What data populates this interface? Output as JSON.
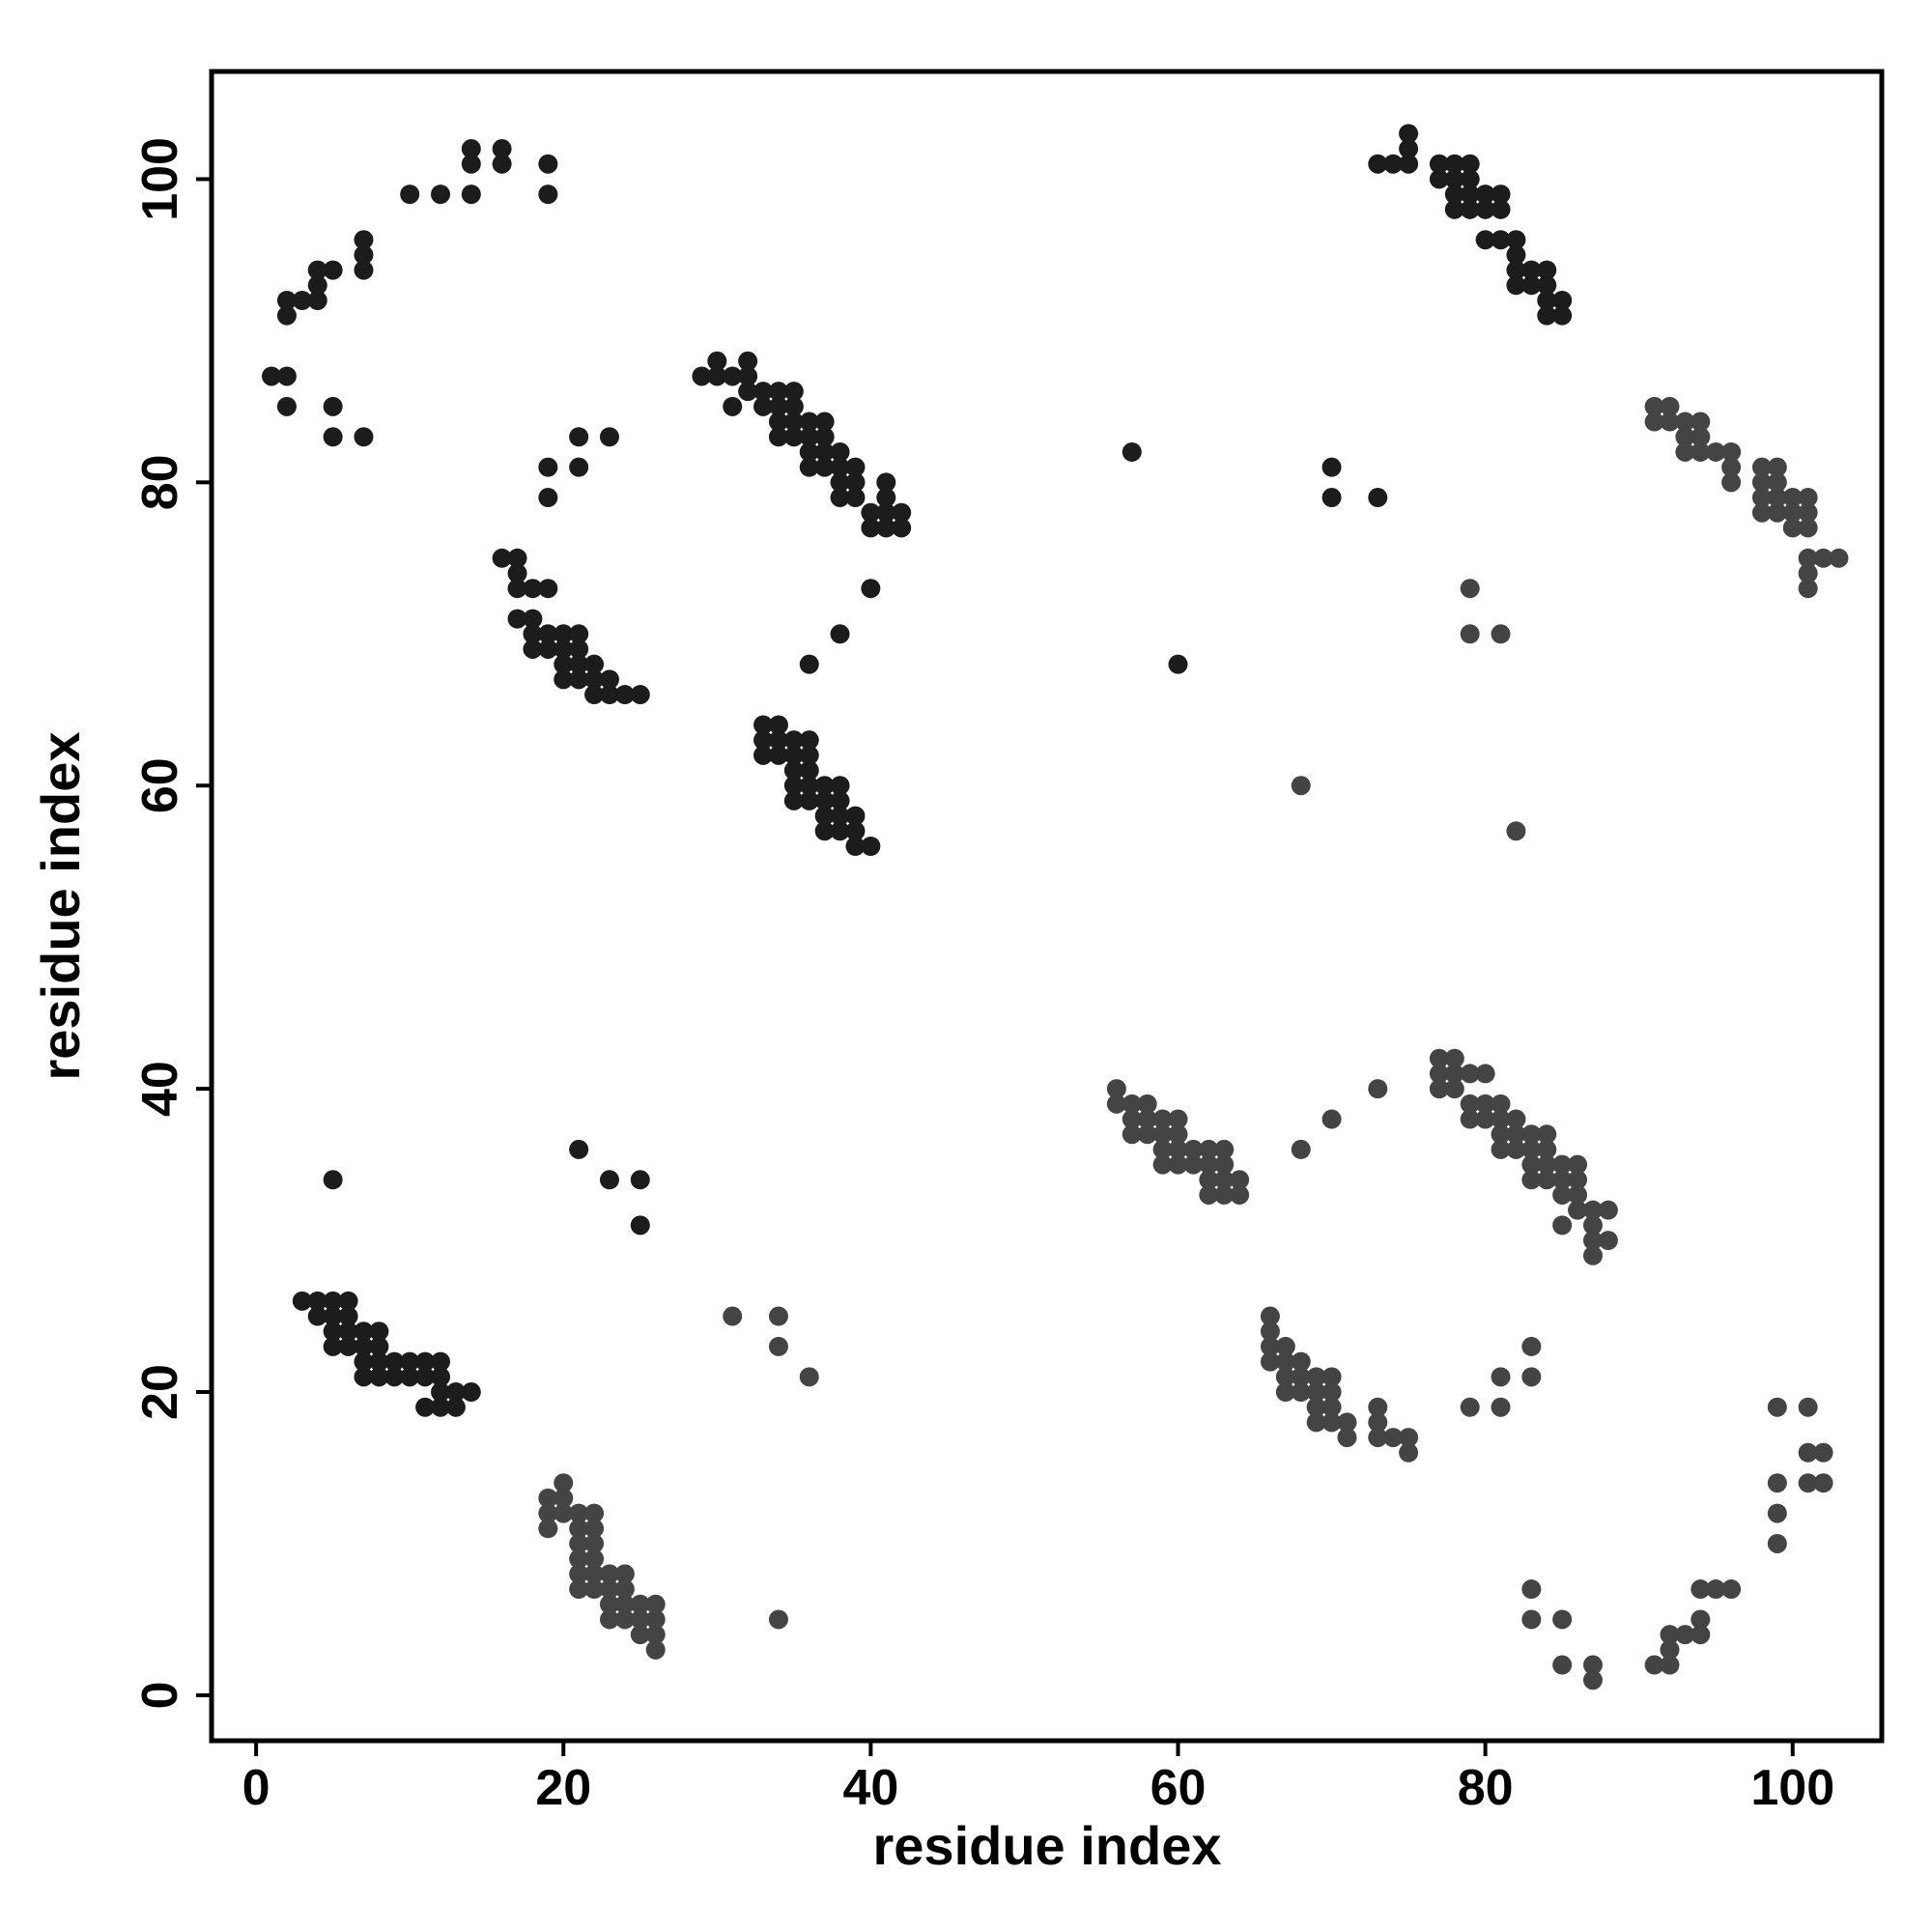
{
  "chart_data": {
    "type": "scatter",
    "xlabel": "residue index",
    "ylabel": "residue index",
    "xlim": [
      -2.9,
      105.8
    ],
    "ylim": [
      -3,
      107.1
    ],
    "xticks": [
      0,
      20,
      40,
      60,
      80,
      100
    ],
    "yticks": [
      0,
      20,
      40,
      60,
      80,
      100
    ],
    "series": [
      {
        "color": "#1c1c1c",
        "x": [
          1,
          2,
          2,
          5,
          5,
          7,
          2,
          2,
          3,
          4,
          4,
          4,
          5,
          7,
          7,
          7,
          10,
          12,
          14,
          14,
          14,
          16,
          16,
          19,
          19,
          3,
          4,
          5,
          6,
          4,
          5,
          6,
          5,
          6,
          7,
          8,
          5,
          6,
          7,
          8,
          7,
          8,
          9,
          10,
          11,
          12,
          7,
          8,
          9,
          10,
          11,
          12,
          12,
          13,
          14,
          11,
          12,
          13,
          5,
          21,
          23,
          25,
          25,
          16,
          17,
          17,
          17,
          18,
          19,
          17,
          18,
          18,
          19,
          20,
          21,
          18,
          19,
          20,
          21,
          20,
          21,
          22,
          20,
          21,
          22,
          23,
          22,
          23,
          24,
          25,
          19,
          19,
          21,
          21,
          23,
          29,
          30,
          30,
          31,
          31,
          32,
          32,
          32,
          33,
          33,
          34,
          34,
          34,
          34,
          35,
          35,
          35,
          35,
          36,
          36,
          36,
          36,
          37,
          37,
          37,
          37,
          38,
          38,
          38,
          38,
          39,
          39,
          39,
          40,
          40,
          41,
          41,
          41,
          41,
          42,
          42,
          40,
          36,
          38,
          33,
          34,
          33,
          34,
          35,
          36,
          33,
          34,
          35,
          36,
          35,
          36,
          35,
          36,
          37,
          38,
          35,
          36,
          37,
          38,
          37,
          38,
          39,
          37,
          38,
          39,
          39,
          40,
          57,
          60,
          70,
          70,
          73,
          73,
          74,
          75,
          75,
          75,
          77,
          77,
          78,
          78,
          78,
          78,
          79,
          79,
          79,
          79,
          80,
          80,
          80,
          81,
          81,
          81,
          82,
          82,
          82,
          82,
          83,
          83,
          84,
          84,
          84,
          84,
          85,
          85
        ],
        "y": [
          87,
          87,
          85,
          85,
          83,
          83,
          91,
          92,
          92,
          92,
          93,
          94,
          94,
          94,
          95,
          96,
          99,
          99,
          99,
          101,
          102,
          101,
          102,
          101,
          99,
          26,
          26,
          26,
          26,
          25,
          25,
          25,
          24,
          24,
          24,
          24,
          23,
          23,
          23,
          23,
          22,
          22,
          22,
          22,
          22,
          22,
          21,
          21,
          21,
          21,
          21,
          21,
          20,
          20,
          20,
          19,
          19,
          19,
          34,
          36,
          34,
          34,
          31,
          75,
          75,
          74,
          73,
          73,
          73,
          71,
          71,
          70,
          70,
          70,
          70,
          69,
          69,
          69,
          69,
          68,
          68,
          68,
          67,
          67,
          67,
          67,
          66,
          66,
          66,
          66,
          81,
          79,
          83,
          81,
          83,
          87,
          87,
          88,
          87,
          85,
          88,
          87,
          86,
          86,
          85,
          86,
          85,
          84,
          83,
          86,
          85,
          84,
          83,
          84,
          83,
          82,
          81,
          84,
          83,
          82,
          81,
          82,
          81,
          80,
          79,
          81,
          80,
          79,
          78,
          77,
          80,
          79,
          78,
          77,
          78,
          77,
          73,
          68,
          70,
          64,
          64,
          63,
          63,
          63,
          63,
          62,
          62,
          62,
          62,
          61,
          61,
          60,
          60,
          60,
          60,
          59,
          59,
          59,
          59,
          58,
          58,
          58,
          57,
          57,
          57,
          56,
          56,
          82,
          68,
          81,
          79,
          79,
          101,
          101,
          101,
          102,
          103,
          101,
          100,
          101,
          100,
          99,
          98,
          101,
          100,
          99,
          98,
          99,
          98,
          96,
          99,
          98,
          96,
          96,
          95,
          94,
          93,
          94,
          93,
          94,
          93,
          92,
          91,
          92,
          91
        ]
      },
      {
        "color": "#444444",
        "x": [
          87,
          87,
          85,
          85,
          83,
          83,
          91,
          92,
          92,
          92,
          93,
          94,
          94,
          94,
          95,
          96,
          99,
          99,
          99,
          101,
          102,
          101,
          102,
          101,
          99,
          26,
          26,
          26,
          26,
          25,
          25,
          25,
          24,
          24,
          24,
          24,
          23,
          23,
          23,
          23,
          22,
          22,
          22,
          22,
          22,
          22,
          21,
          21,
          21,
          21,
          21,
          21,
          20,
          20,
          20,
          19,
          19,
          19,
          34,
          36,
          34,
          34,
          31,
          75,
          75,
          74,
          73,
          73,
          73,
          71,
          71,
          70,
          70,
          70,
          70,
          69,
          69,
          69,
          69,
          68,
          68,
          68,
          67,
          67,
          67,
          67,
          66,
          66,
          66,
          66,
          81,
          79,
          83,
          81,
          83,
          87,
          87,
          88,
          87,
          85,
          88,
          87,
          86,
          86,
          85,
          86,
          85,
          84,
          83,
          86,
          85,
          84,
          83,
          84,
          83,
          82,
          81,
          84,
          83,
          82,
          81,
          82,
          81,
          80,
          79,
          81,
          80,
          79,
          78,
          77,
          80,
          79,
          78,
          77,
          78,
          77,
          73,
          68,
          70,
          64,
          64,
          63,
          63,
          63,
          63,
          62,
          62,
          62,
          62,
          61,
          61,
          60,
          60,
          60,
          60,
          59,
          59,
          59,
          59,
          58,
          58,
          58,
          57,
          57,
          57,
          56,
          56,
          82,
          68,
          81,
          79,
          79,
          101,
          101,
          101,
          102,
          103,
          101,
          100,
          101,
          100,
          99,
          98,
          101,
          100,
          99,
          98,
          99,
          98,
          96,
          99,
          98,
          96,
          96,
          95,
          94,
          93,
          94,
          93,
          94,
          93,
          92,
          91,
          92,
          91
        ],
        "y": [
          1,
          2,
          2,
          5,
          5,
          7,
          2,
          2,
          3,
          4,
          4,
          4,
          5,
          7,
          7,
          7,
          10,
          12,
          14,
          14,
          14,
          16,
          16,
          19,
          19,
          3,
          4,
          5,
          6,
          4,
          5,
          6,
          5,
          6,
          7,
          8,
          5,
          6,
          7,
          8,
          7,
          8,
          9,
          10,
          11,
          12,
          7,
          8,
          9,
          10,
          11,
          12,
          12,
          13,
          14,
          11,
          12,
          13,
          5,
          21,
          23,
          25,
          25,
          16,
          17,
          17,
          17,
          18,
          19,
          17,
          18,
          18,
          19,
          20,
          21,
          18,
          19,
          20,
          21,
          20,
          21,
          22,
          20,
          21,
          22,
          23,
          22,
          23,
          24,
          25,
          19,
          19,
          21,
          21,
          23,
          29,
          30,
          30,
          31,
          31,
          32,
          32,
          32,
          33,
          33,
          34,
          34,
          34,
          34,
          35,
          35,
          35,
          35,
          36,
          36,
          36,
          36,
          37,
          37,
          37,
          37,
          38,
          38,
          38,
          38,
          39,
          39,
          39,
          40,
          40,
          41,
          41,
          41,
          41,
          42,
          42,
          40,
          36,
          38,
          33,
          34,
          33,
          34,
          35,
          36,
          33,
          34,
          35,
          36,
          35,
          36,
          35,
          36,
          37,
          38,
          35,
          36,
          37,
          38,
          37,
          38,
          39,
          37,
          38,
          39,
          39,
          40,
          57,
          60,
          70,
          70,
          73,
          73,
          74,
          75,
          75,
          75,
          77,
          77,
          78,
          78,
          78,
          78,
          79,
          79,
          79,
          79,
          80,
          80,
          80,
          81,
          81,
          81,
          82,
          82,
          82,
          82,
          83,
          83,
          84,
          84,
          84,
          84,
          85,
          85
        ]
      }
    ]
  }
}
